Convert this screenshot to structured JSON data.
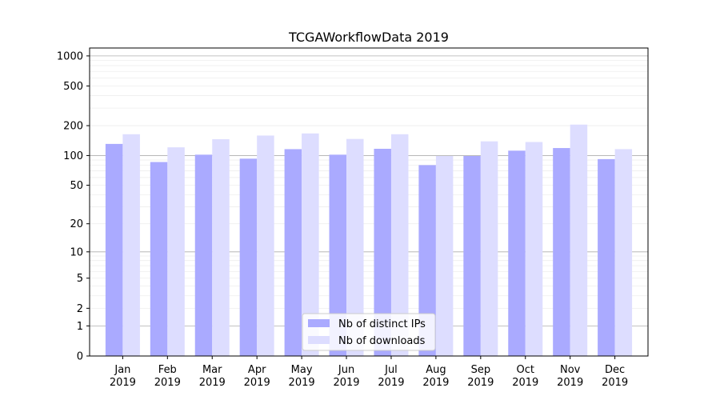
{
  "chart_data": {
    "type": "bar",
    "title": "TCGAWorkflowData 2019",
    "xlabel": "",
    "ylabel": "",
    "y_scale": "log(1+y)",
    "ylim": [
      0,
      1200
    ],
    "y_ticks": [
      0,
      1,
      2,
      5,
      10,
      20,
      50,
      100,
      200,
      500,
      1000
    ],
    "grid": true,
    "legend_position": "bottom-center",
    "categories": [
      "Jan\n2019",
      "Feb\n2019",
      "Mar\n2019",
      "Apr\n2019",
      "May\n2019",
      "Jun\n2019",
      "Jul\n2019",
      "Aug\n2019",
      "Sep\n2019",
      "Oct\n2019",
      "Nov\n2019",
      "Dec\n2019"
    ],
    "series": [
      {
        "name": "Nb of distinct IPs",
        "color": "#aaaaff",
        "values": [
          131,
          86,
          102,
          93,
          116,
          102,
          117,
          80,
          99,
          112,
          119,
          92
        ]
      },
      {
        "name": "Nb of downloads",
        "color": "#ddddff",
        "values": [
          164,
          121,
          146,
          159,
          167,
          147,
          164,
          99,
          139,
          137,
          205,
          116
        ]
      }
    ]
  }
}
